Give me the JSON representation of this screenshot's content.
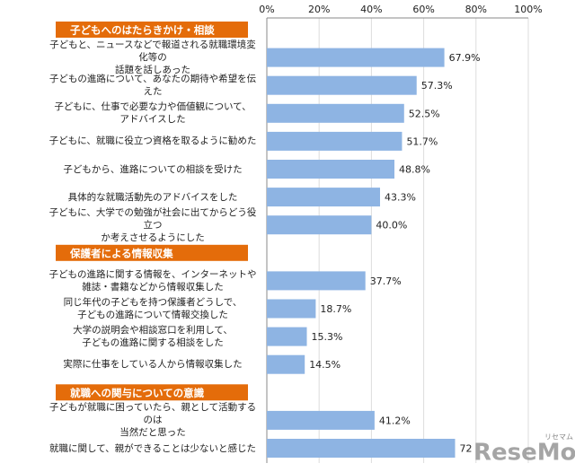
{
  "chart_data": {
    "type": "bar",
    "orientation": "horizontal",
    "color": "#8eb4e3",
    "header_color": "#e46c0a",
    "xlim": [
      0,
      100
    ],
    "xticks": [
      {
        "value": 0,
        "label": "0%"
      },
      {
        "value": 20,
        "label": "20%"
      },
      {
        "value": 40,
        "label": "40%"
      },
      {
        "value": 60,
        "label": "60%"
      },
      {
        "value": 80,
        "label": "80%"
      },
      {
        "value": 100,
        "label": "100%"
      }
    ],
    "grid": true,
    "groups": [
      {
        "name": "子どもへのはたらきかけ・相談",
        "categories": [
          "子どもと、ニュースなどで報道される就職環境変化等の\n話題を話しあった",
          "子どもの進路について、あなたの期待や希望を伝えた",
          "子どもに、仕事で必要な力や価値観について、\nアドバイスした",
          "子どもに、就職に役立つ資格を取るように勧めた",
          "子どもから、進路についての相談を受けた",
          "具体的な就職活動先のアドバイスをした",
          "子どもに、大学での勉強が社会に出てからどう役立つ\nか考えさせるようにした"
        ],
        "values": [
          67.9,
          57.3,
          52.5,
          51.7,
          48.8,
          43.3,
          40.0
        ],
        "value_labels": [
          "67.9%",
          "57.3%",
          "52.5%",
          "51.7%",
          "48.8%",
          "43.3%",
          "40.0%"
        ]
      },
      {
        "name": "保護者による情報収集",
        "categories": [
          "子どもの進路に関する情報を、インターネットや\n雑誌・書籍などから情報収集した",
          "同じ年代の子どもを持つ保護者どうしで、\n子どもの進路について情報交換した",
          "大学の説明会や相談窓口を利用して、\n子どもの進路に関する相談をした",
          "実際に仕事をしている人から情報収集した"
        ],
        "values": [
          37.7,
          18.7,
          15.3,
          14.5
        ],
        "value_labels": [
          "37.7%",
          "18.7%",
          "15.3%",
          "14.5%"
        ]
      },
      {
        "name": "就職への関与についての意識",
        "categories": [
          "子どもが就職に困っていたら、親として活動するのは\n当然だと思った",
          "就職に関して、親ができることは少ないと感じた"
        ],
        "values": [
          41.2,
          72
        ],
        "value_labels": [
          "41.2%",
          "72"
        ]
      }
    ],
    "watermark": "ReseMom",
    "watermark_sub": "リセマム"
  }
}
